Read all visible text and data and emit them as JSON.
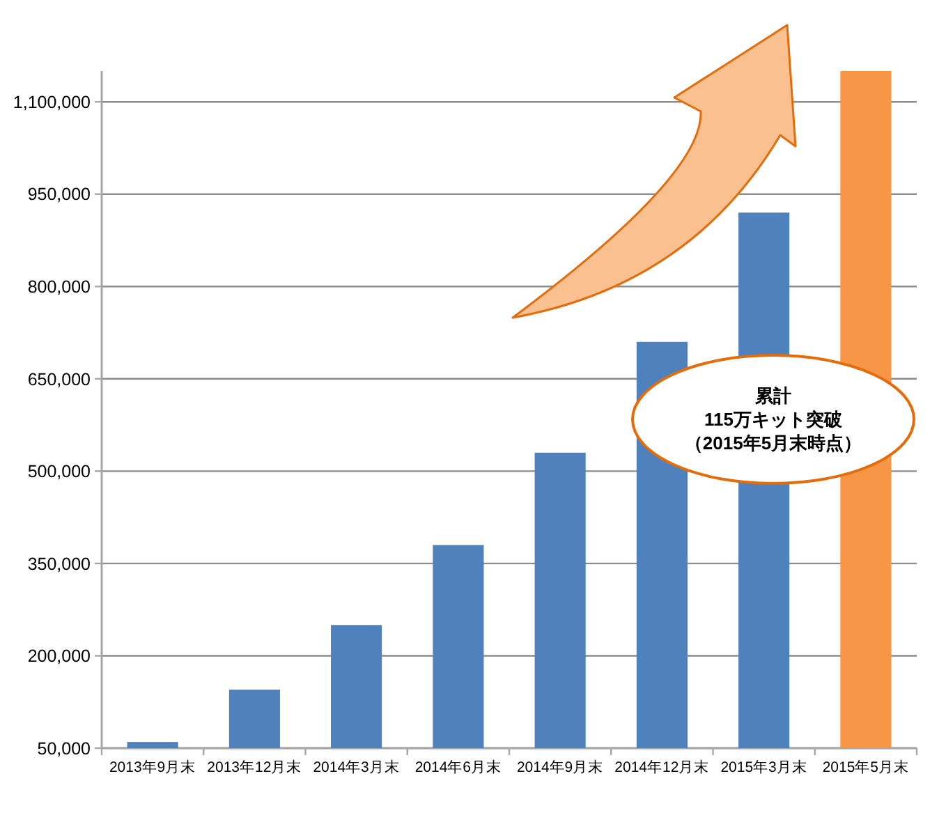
{
  "chart_data": {
    "type": "bar",
    "categories": [
      "2013年9月末",
      "2013年12月末",
      "2014年3月末",
      "2014年6月末",
      "2014年9月末",
      "2014年12月末",
      "2015年3月末",
      "2015年5月末"
    ],
    "values": [
      60000,
      145000,
      250000,
      380000,
      530000,
      710000,
      920000,
      1150000
    ],
    "colors": [
      "#4f81bd",
      "#4f81bd",
      "#4f81bd",
      "#4f81bd",
      "#4f81bd",
      "#4f81bd",
      "#4f81bd",
      "#f79646"
    ],
    "ylim": [
      50000,
      1150000
    ],
    "yticks": [
      {
        "value": 50000,
        "label": "50,000"
      },
      {
        "value": 200000,
        "label": "200,000"
      },
      {
        "value": 350000,
        "label": "350,000"
      },
      {
        "value": 500000,
        "label": "500,000"
      },
      {
        "value": 650000,
        "label": "650,000"
      },
      {
        "value": 800000,
        "label": "800,000"
      },
      {
        "value": 950000,
        "label": "950,000"
      },
      {
        "value": 1100000,
        "label": "1,100,000"
      }
    ],
    "grid": "y",
    "annotations": [
      "累計",
      "115万キット突破",
      "（2015年5月末時点）"
    ]
  }
}
